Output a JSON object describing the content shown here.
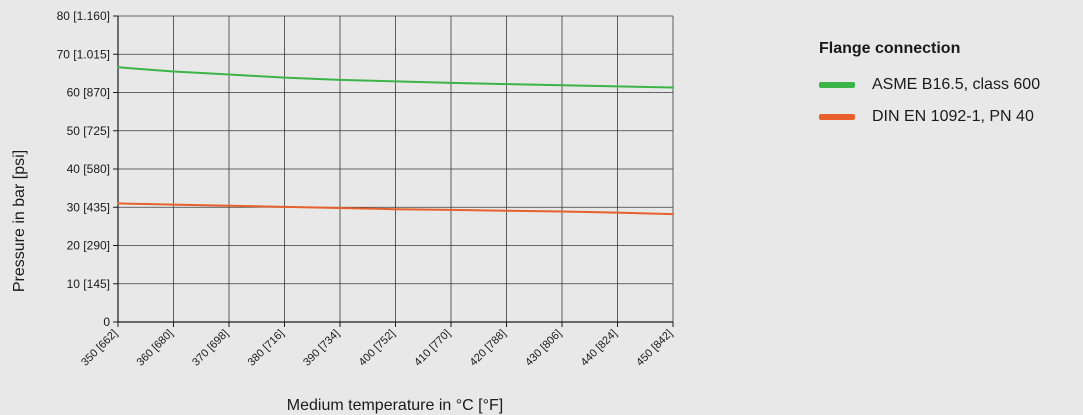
{
  "chart_data": {
    "type": "line",
    "xlabel": "Medium temperature in °C [°F]",
    "ylabel": "Pressure in bar [psi]",
    "x": [
      350,
      360,
      370,
      380,
      390,
      400,
      410,
      420,
      430,
      440,
      450
    ],
    "x_tick_labels": [
      "350 [662]",
      "360 [680]",
      "370 [698]",
      "380 [716]",
      "390 [734]",
      "400 [752]",
      "410 [770]",
      "420 [788]",
      "430 [806]",
      "440 [824]",
      "450 [842]"
    ],
    "y_ticks": [
      0,
      10,
      20,
      30,
      40,
      50,
      60,
      70,
      80
    ],
    "y_tick_labels": [
      "0",
      "10 [145]",
      "20 [290]",
      "30 [435]",
      "40 [580]",
      "50 [725]",
      "60 [870]",
      "70 [1.015]",
      "80 [1.160]"
    ],
    "xlim": [
      350,
      450
    ],
    "ylim": [
      0,
      80
    ],
    "grid": true,
    "legend_title": "Flange connection",
    "legend_position": "right",
    "series": [
      {
        "name": "ASME B16.5, class 600",
        "color": "#3bb54a",
        "values": [
          66.6,
          65.5,
          64.7,
          63.9,
          63.3,
          62.9,
          62.5,
          62.2,
          61.9,
          61.6,
          61.3
        ]
      },
      {
        "name": "DIN EN 1092-1, PN 40",
        "color": "#e8612c",
        "values": [
          31.0,
          30.7,
          30.4,
          30.1,
          29.8,
          29.5,
          29.3,
          29.1,
          28.9,
          28.6,
          28.2
        ]
      }
    ]
  }
}
